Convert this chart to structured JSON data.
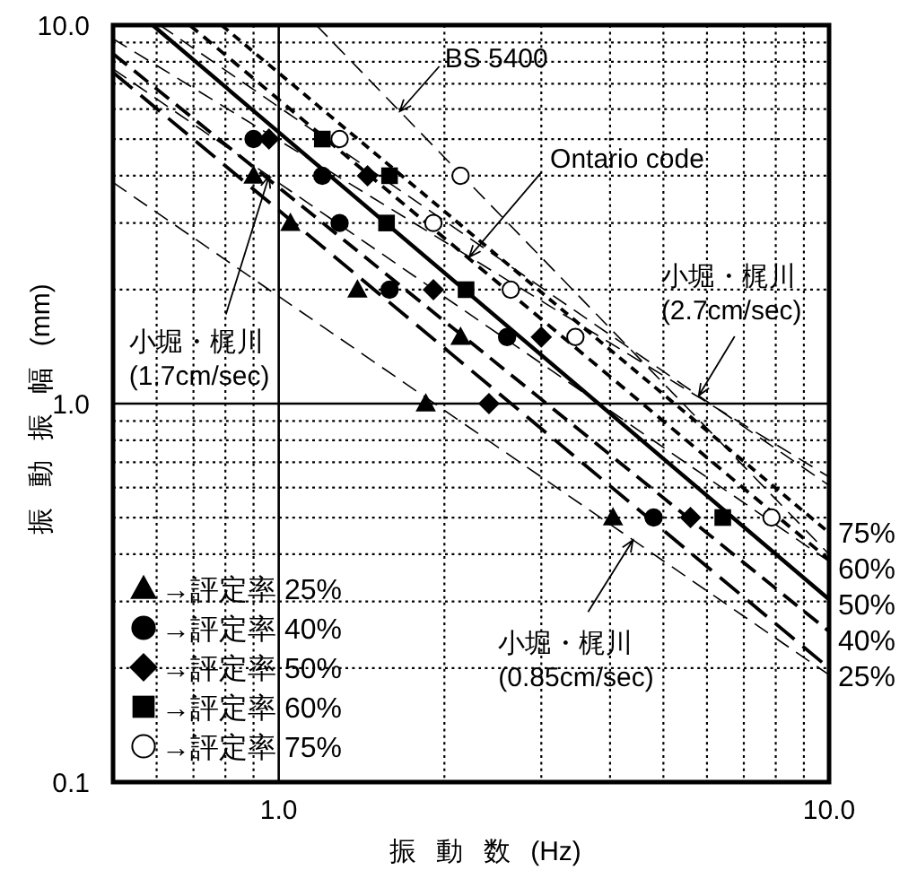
{
  "chart_data": {
    "type": "scatter",
    "xlabel": "振 動 数 (Hz)",
    "ylabel": "振 動 振 幅 (mm)",
    "log": "xy",
    "xlim": [
      0.5,
      10
    ],
    "ylim": [
      0.1,
      10
    ],
    "xticks": [
      {
        "value": 0.6,
        "label": null
      },
      {
        "value": 0.7,
        "label": null
      },
      {
        "value": 0.8,
        "label": null
      },
      {
        "value": 0.9,
        "label": null
      },
      {
        "value": 1,
        "label": "1.0"
      },
      {
        "value": 2,
        "label": null
      },
      {
        "value": 3,
        "label": null
      },
      {
        "value": 4,
        "label": null
      },
      {
        "value": 5,
        "label": null
      },
      {
        "value": 6,
        "label": null
      },
      {
        "value": 7,
        "label": null
      },
      {
        "value": 8,
        "label": null
      },
      {
        "value": 9,
        "label": null
      },
      {
        "value": 10,
        "label": "10.0"
      }
    ],
    "yticks": [
      {
        "value": 0.1,
        "label": "0.1"
      },
      {
        "value": 0.2,
        "label": null
      },
      {
        "value": 0.3,
        "label": null
      },
      {
        "value": 0.4,
        "label": null
      },
      {
        "value": 0.5,
        "label": null
      },
      {
        "value": 0.6,
        "label": null
      },
      {
        "value": 0.7,
        "label": null
      },
      {
        "value": 0.8,
        "label": null
      },
      {
        "value": 0.9,
        "label": null
      },
      {
        "value": 1,
        "label": "1.0"
      },
      {
        "value": 2,
        "label": null
      },
      {
        "value": 3,
        "label": null
      },
      {
        "value": 4,
        "label": null
      },
      {
        "value": 5,
        "label": null
      },
      {
        "value": 6,
        "label": null
      },
      {
        "value": 7,
        "label": null
      },
      {
        "value": 8,
        "label": null
      },
      {
        "value": 9,
        "label": null
      },
      {
        "value": 10,
        "label": "10.0"
      }
    ],
    "grid": true,
    "legend": "bottom left",
    "series": [
      {
        "name": "75%",
        "type": "line",
        "line_style": "dashed",
        "color": "#000000",
        "x": [
          0.787,
          10
        ],
        "values": [
          10,
          0.456
        ]
      },
      {
        "name": "60%",
        "type": "line",
        "line_style": "dashed",
        "color": "#000000",
        "x": [
          0.689,
          10
        ],
        "values": [
          10,
          0.387
        ]
      },
      {
        "name": "50%",
        "type": "line",
        "line_style": "solid",
        "color": "#000000",
        "x": [
          0.59,
          10
        ],
        "values": [
          10,
          0.304
        ]
      },
      {
        "name": "40%",
        "type": "line",
        "line_style": "dashed",
        "color": "#000000",
        "x": [
          0.5,
          10
        ],
        "values": [
          8.4,
          0.25
        ]
      },
      {
        "name": "25%",
        "type": "line",
        "line_style": "dashed",
        "color": "#000000",
        "x": [
          0.5,
          10
        ],
        "values": [
          7.5,
          0.2
        ]
      },
      {
        "type": "line",
        "line_style": "dashed",
        "color": "#000000",
        "x": [
          1.17,
          10
        ],
        "values": [
          10,
          0.4
        ]
      },
      {
        "type": "line",
        "line_style": "dashed",
        "color": "#000000",
        "x": [
          0.5,
          10
        ],
        "values": [
          9.2,
          0.64
        ]
      },
      {
        "type": "line",
        "line_style": "dashed",
        "color": "#000000",
        "x": [
          0.5,
          10
        ],
        "values": [
          3.84,
          0.192
        ]
      },
      {
        "type": "line",
        "line_style": "dashed",
        "color": "#000000",
        "x": [
          0.5,
          10
        ],
        "values": [
          7.66,
          0.383
        ]
      },
      {
        "type": "line",
        "line_style": "dashed",
        "color": "#000000",
        "x": [
          0.608,
          10
        ],
        "values": [
          10,
          0.608
        ]
      },
      {
        "name": "→評定率 25%",
        "marker": "triangle",
        "color": "#000000",
        "x": [
          0.9,
          1.05,
          1.39,
          1.85,
          2.14,
          4.05
        ],
        "values": [
          4.0,
          3.0,
          2.0,
          1.0,
          1.5,
          0.5
        ]
      },
      {
        "name": "→評定率 40%",
        "marker": "circle",
        "color": "#000000",
        "x": [
          0.9,
          1.2,
          1.29,
          1.59,
          2.6,
          4.8
        ],
        "values": [
          5.0,
          4.0,
          3.0,
          2.0,
          1.5,
          0.5
        ]
      },
      {
        "name": "→評定率 50%",
        "marker": "diamond",
        "color": "#000000",
        "x": [
          0.96,
          1.45,
          1.91,
          3.0,
          2.41,
          5.6
        ],
        "values": [
          5.0,
          4.0,
          2.0,
          1.5,
          1.0,
          0.5
        ]
      },
      {
        "name": "→評定率 60%",
        "marker": "square",
        "color": "#000000",
        "x": [
          1.2,
          1.59,
          1.57,
          2.19,
          6.41
        ],
        "values": [
          5.0,
          4.0,
          3.0,
          2.0,
          0.5
        ]
      },
      {
        "name": "→評定率 75%",
        "marker": "circle",
        "color": "#ffffff",
        "x": [
          1.29,
          2.14,
          1.91,
          2.64,
          3.46,
          7.86
        ],
        "values": [
          5.0,
          4.0,
          3.0,
          2.0,
          1.5,
          0.5
        ]
      }
    ],
    "annotations": [
      {
        "text": "BS 5400",
        "x": 1.66,
        "y": 5.92
      },
      {
        "text": "Ontario code",
        "x": 2.22,
        "y": 2.44
      },
      {
        "text": "小堀・梶川\n(1.7cm/sec)",
        "x": 0.96,
        "y": 3.99
      },
      {
        "text": "小堀・梶川\n(2.7cm/sec)",
        "x": 5.8,
        "y": 1.05
      },
      {
        "text": "小堀・梶川\n(0.85cm/sec)",
        "x": 4.4,
        "y": 0.436
      }
    ]
  }
}
